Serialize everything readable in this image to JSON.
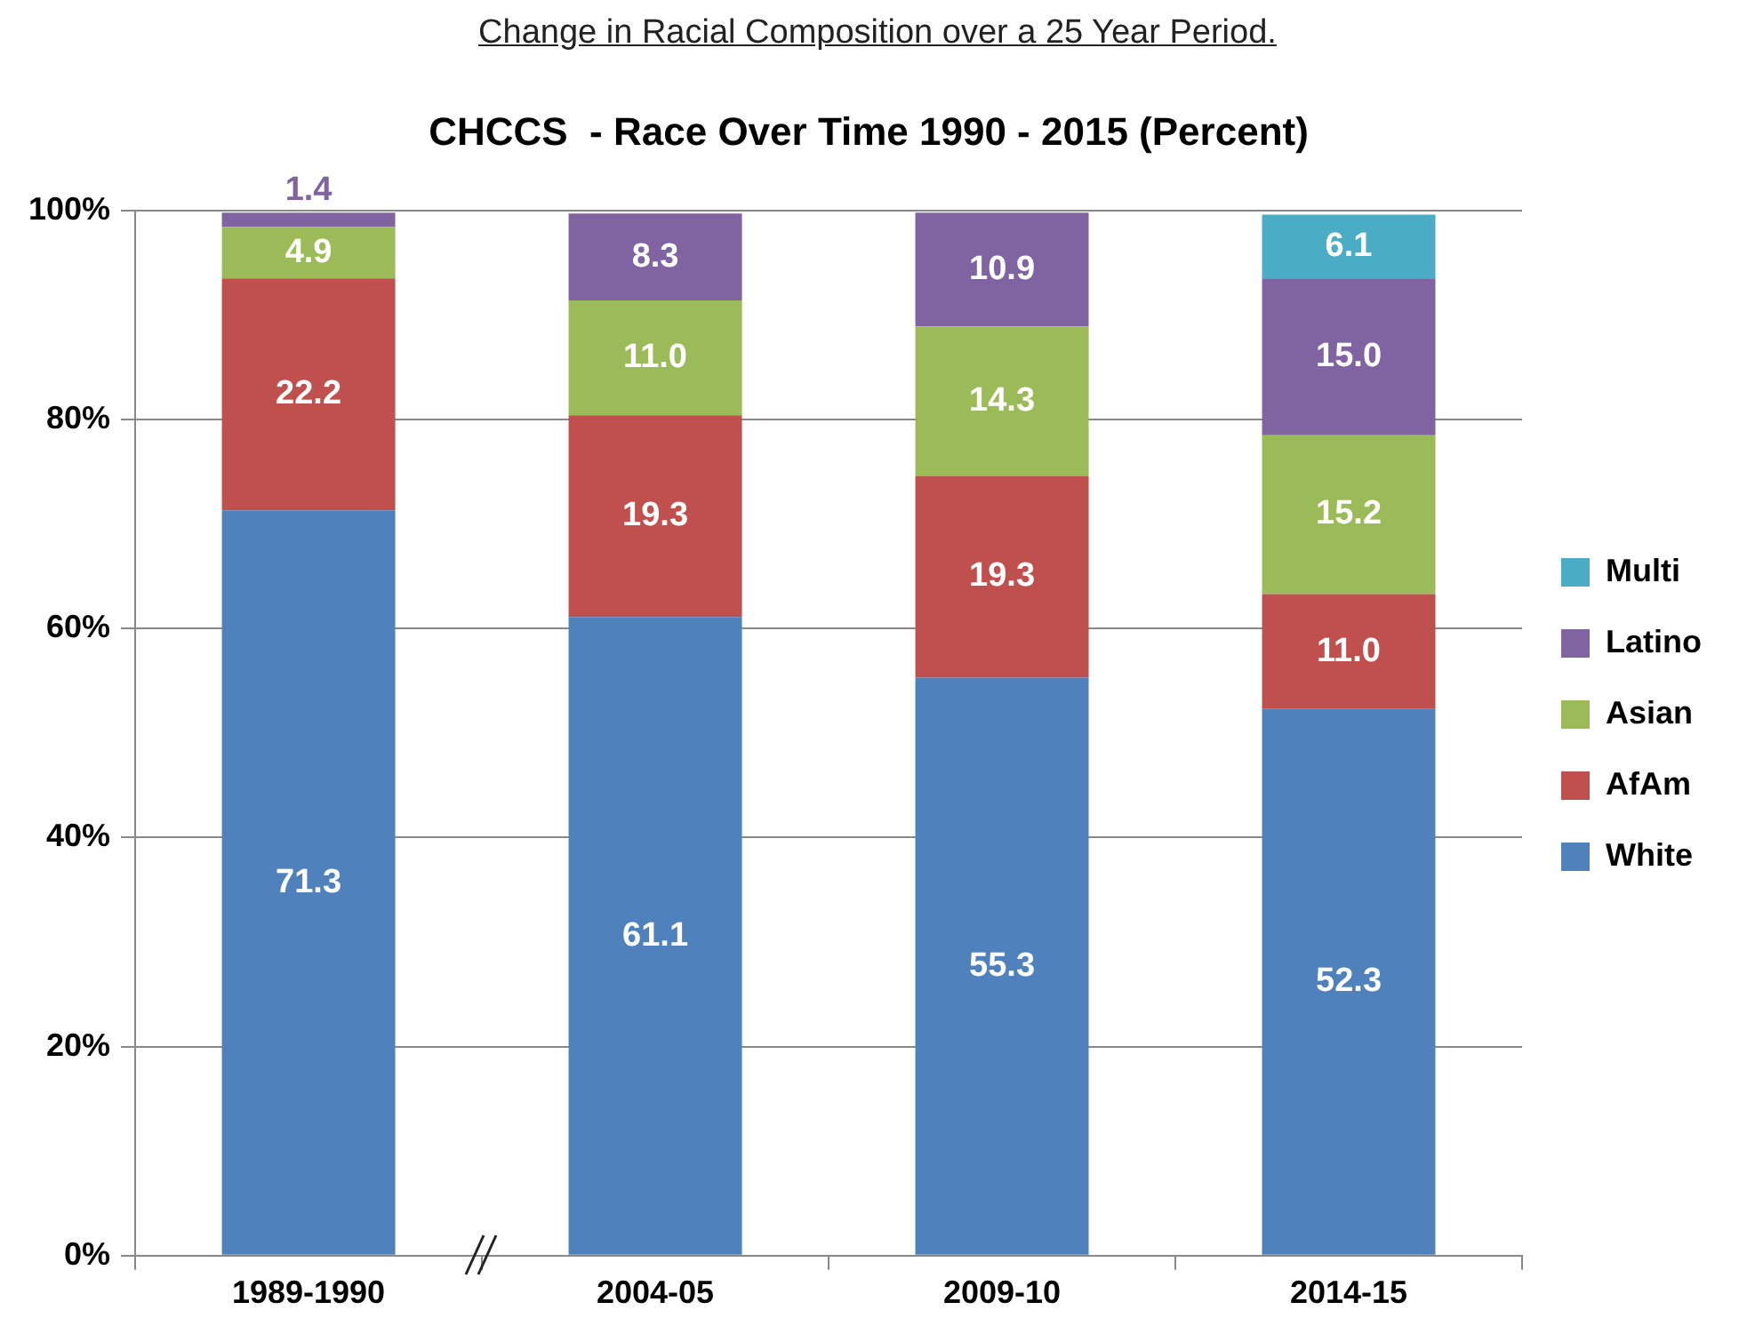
{
  "chart_data": {
    "type": "bar",
    "title": "Change in Racial Composition over a 25 Year Period.",
    "subtitle": "CHCCS  - Race Over Time 1990 - 2015 (Percent)",
    "categories": [
      "1989-1990",
      "2004-05",
      "2009-10",
      "2014-15"
    ],
    "stacked": true,
    "series": [
      {
        "name": "White",
        "color": "#4f81bd",
        "values": [
          71.3,
          61.1,
          55.3,
          52.3
        ],
        "value_labels": [
          "71.3",
          "61.1",
          "55.3",
          "52.3"
        ]
      },
      {
        "name": "AfAm",
        "color": "#c0504d",
        "values": [
          22.2,
          19.3,
          19.3,
          11.0
        ],
        "value_labels": [
          "22.2",
          "19.3",
          "19.3",
          "11.0"
        ]
      },
      {
        "name": "Asian",
        "color": "#9bbb59",
        "values": [
          4.9,
          11.0,
          14.3,
          15.2
        ],
        "value_labels": [
          "4.9",
          "11.0",
          "14.3",
          "15.2"
        ]
      },
      {
        "name": "Latino",
        "color": "#8064a2",
        "values": [
          1.4,
          8.3,
          10.9,
          15.0
        ],
        "value_labels": [
          "1.4",
          "8.3",
          "10.9",
          "15.0"
        ]
      },
      {
        "name": "Multi",
        "color": "#4bacc6",
        "values": [
          null,
          null,
          null,
          6.1
        ],
        "value_labels": [
          null,
          null,
          null,
          "6.1"
        ]
      }
    ],
    "ylim": [
      0,
      100
    ],
    "yticks": [
      {
        "value": 0,
        "label": "0%"
      },
      {
        "value": 20,
        "label": "20%"
      },
      {
        "value": 40,
        "label": "40%"
      },
      {
        "value": 60,
        "label": "60%"
      },
      {
        "value": 80,
        "label": "80%"
      },
      {
        "value": 100,
        "label": "100%"
      }
    ],
    "grid": "y",
    "legend": "right"
  }
}
